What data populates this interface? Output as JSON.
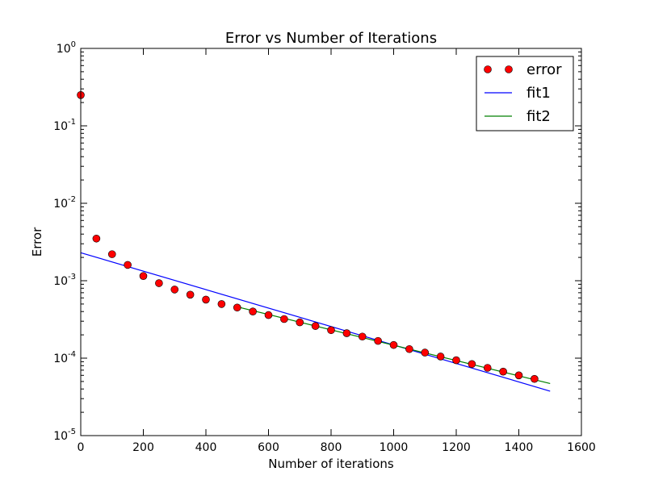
{
  "chart_data": {
    "type": "scatter",
    "title": "Error vs Number of Iterations",
    "xlabel": "Number of iterations",
    "ylabel": "Error",
    "xlim": [
      0,
      1600
    ],
    "ylim": [
      1e-05,
      1
    ],
    "yscale": "log",
    "grid": false,
    "legend_position": "top-right",
    "xticks": [
      0,
      200,
      400,
      600,
      800,
      1000,
      1200,
      1400,
      1600
    ],
    "yticks": [
      {
        "base": "10",
        "exp": "0",
        "value": 1
      },
      {
        "base": "10",
        "exp": "-1",
        "value": 0.1
      },
      {
        "base": "10",
        "exp": "-2",
        "value": 0.01
      },
      {
        "base": "10",
        "exp": "-3",
        "value": 0.001
      },
      {
        "base": "10",
        "exp": "-4",
        "value": 0.0001
      },
      {
        "base": "10",
        "exp": "-5",
        "value": 1e-05
      }
    ],
    "series": [
      {
        "name": "error",
        "kind": "markers",
        "color": "#ff0000",
        "x": [
          0,
          50,
          100,
          150,
          200,
          250,
          300,
          350,
          400,
          450,
          500,
          550,
          600,
          650,
          700,
          750,
          800,
          850,
          900,
          950,
          1000,
          1050,
          1100,
          1150,
          1200,
          1250,
          1300,
          1350,
          1400,
          1450
        ],
        "y": [
          0.25,
          0.0035,
          0.0022,
          0.0016,
          0.00115,
          0.00093,
          0.00077,
          0.00066,
          0.00057,
          0.0005,
          0.00045,
          0.0004,
          0.00036,
          0.00032,
          0.00029,
          0.00026,
          0.00023,
          0.00021,
          0.00019,
          0.000167,
          0.000148,
          0.000131,
          0.000118,
          0.000105,
          9.4e-05,
          8.4e-05,
          7.5e-05,
          6.7e-05,
          6e-05,
          5.4e-05
        ]
      },
      {
        "name": "fit1",
        "kind": "line",
        "color": "#0000ff",
        "x": [
          0,
          1500
        ],
        "y": [
          0.0023,
          3.75e-05
        ]
      },
      {
        "name": "fit2",
        "kind": "line",
        "color": "#008000",
        "x": [
          500,
          1500
        ],
        "y": [
          0.00046,
          4.7e-05
        ]
      }
    ]
  }
}
